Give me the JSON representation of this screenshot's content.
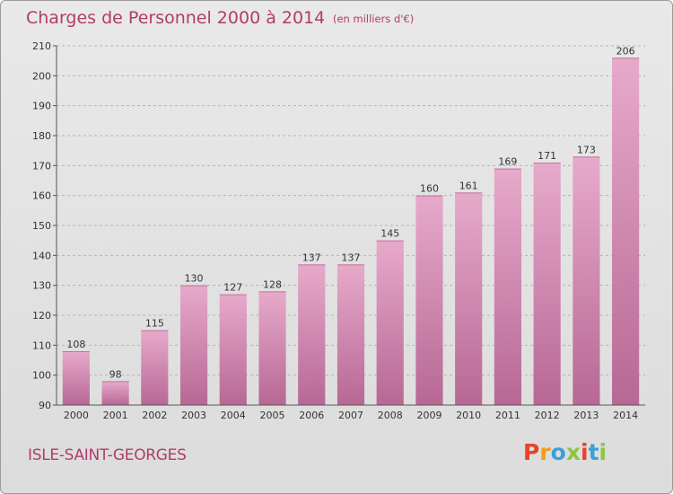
{
  "header": {
    "title": "Charges de Personnel 2000 à 2014",
    "subtitle": "(en milliers d'€)"
  },
  "footer": {
    "commune": "ISLE-SAINT-GEORGES",
    "brand": "Proxiti",
    "brand_colors": [
      "#e8432b",
      "#f39c1a",
      "#3aa0d8",
      "#8dc63f",
      "#e8432b",
      "#3aa0d8",
      "#8dc63f"
    ]
  },
  "colors": {
    "title": "#b03c6a",
    "bar_light": "#e7aacb",
    "bar_dark": "#b76894",
    "grid": "#b5b5b5"
  },
  "chart_data": {
    "type": "bar",
    "title": "Charges de Personnel 2000 à 2014",
    "subtitle": "(en milliers d'€)",
    "categories": [
      "2000",
      "2001",
      "2002",
      "2003",
      "2004",
      "2005",
      "2006",
      "2007",
      "2008",
      "2009",
      "2010",
      "2011",
      "2012",
      "2013",
      "2014"
    ],
    "values": [
      108,
      98,
      115,
      130,
      127,
      128,
      137,
      137,
      145,
      160,
      161,
      169,
      171,
      173,
      206
    ],
    "ylim": [
      90,
      210
    ],
    "yticks": [
      90,
      100,
      110,
      120,
      130,
      140,
      150,
      160,
      170,
      180,
      190,
      200,
      210
    ],
    "grid": "horizontal dashed",
    "xlabel": "",
    "ylabel": ""
  }
}
